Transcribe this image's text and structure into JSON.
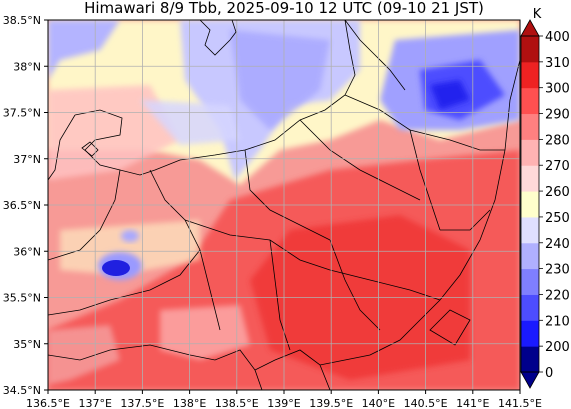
{
  "title": "Himawari 8/9 Tbb, 2025-09-10 12 UTC (09-10 21 JST)",
  "map": {
    "lon_range": [
      136.5,
      141.5
    ],
    "lat_range": [
      34.5,
      38.5
    ],
    "x_ticks": [
      "136.5°E",
      "137°E",
      "137.5°E",
      "138°E",
      "138.5°E",
      "139°E",
      "139.5°E",
      "140°E",
      "140.5°E",
      "141°E",
      "141.5°E"
    ],
    "y_ticks": [
      "38.5°N",
      "38°N",
      "37.5°N",
      "37°N",
      "36.5°N",
      "36°N",
      "35.5°N",
      "35°N",
      "34.5°N"
    ],
    "grid": true,
    "colors": {
      "bg": "#f79a96",
      "gridline": "#b0b0b0",
      "coast": "#000000"
    }
  },
  "colorbar": {
    "unit": "K",
    "levels": [
      "0",
      "200",
      "210",
      "220",
      "230",
      "240",
      "250",
      "260",
      "270",
      "280",
      "290",
      "300",
      "310",
      "400"
    ],
    "colors": [
      "#00008b",
      "#1a1aff",
      "#4d4dff",
      "#7f7fff",
      "#b0b0ff",
      "#e0e0ff",
      "#ffffcc",
      "#ffd9d9",
      "#ffb3b3",
      "#ff8080",
      "#ff5050",
      "#ee2222",
      "#b01010"
    ],
    "placement": "right"
  }
}
